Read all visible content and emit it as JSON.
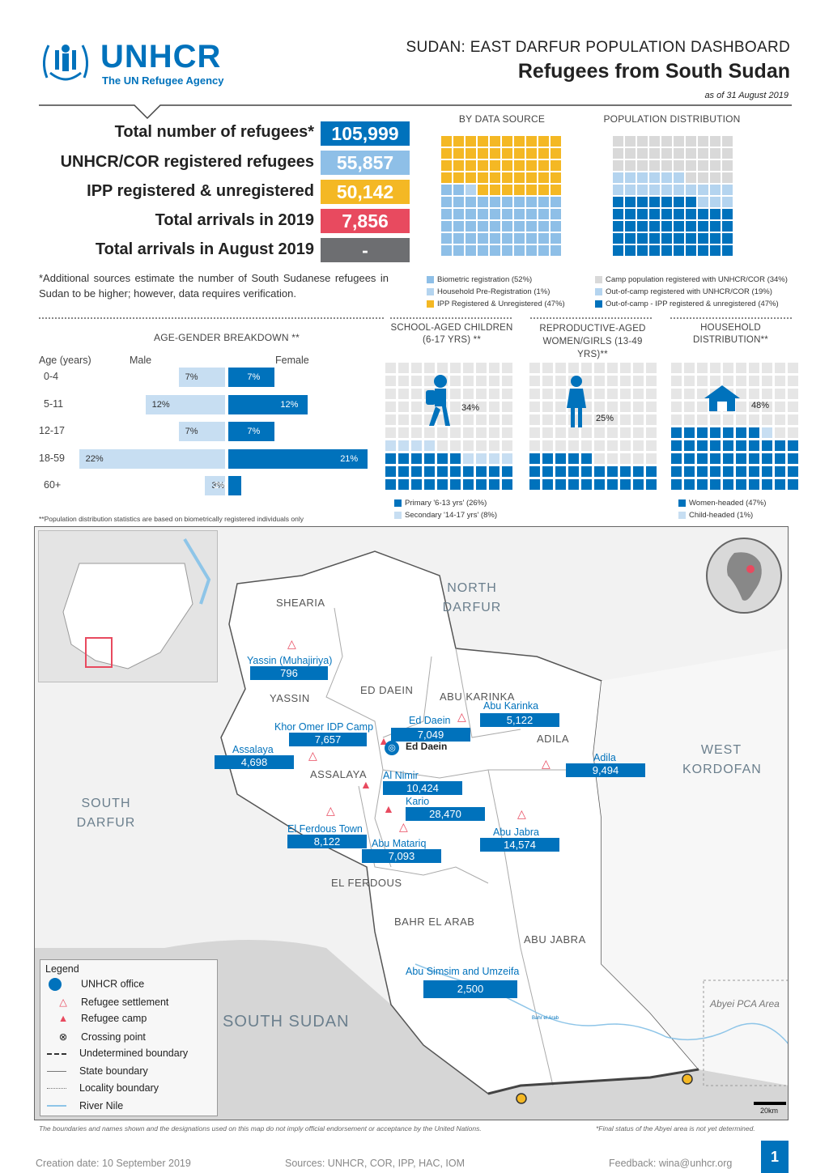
{
  "logo": {
    "name": "UNHCR",
    "tagline": "The UN Refugee Agency"
  },
  "header": {
    "title": "SUDAN: EAST DARFUR POPULATION DASHBOARD",
    "subtitle": "Refugees from South Sudan",
    "date": "as of 31 August 2019"
  },
  "stats": [
    {
      "label": "Total number of refugees*",
      "value": "105,999",
      "color": "#0072bc"
    },
    {
      "label": "UNHCR/COR registered refugees",
      "value": "55,857",
      "color": "#8ebfe7"
    },
    {
      "label": "IPP registered & unregistered",
      "value": "50,142",
      "color": "#f4b824"
    },
    {
      "label": "Total arrivals in 2019",
      "value": "7,856",
      "color": "#e84a5f"
    },
    {
      "label": "Total arrivals in August 2019",
      "value": "-",
      "color": "#6d6e71"
    }
  ],
  "footnote": "*Additional sources estimate the number of South Sudanese refugees in Sudan to be higher; however, data requires verification.",
  "by_data_source": {
    "title": "BY DATA SOURCE",
    "legend": [
      {
        "label": "Biometric registration (52%)",
        "color": "#8ebfe7",
        "pct": 52
      },
      {
        "label": "Household Pre-Registration (1%)",
        "color": "#b4d4ef",
        "pct": 1
      },
      {
        "label": "IPP Registered & Unregistered (47%)",
        "color": "#f4b824",
        "pct": 47
      }
    ]
  },
  "population_distribution": {
    "title": "POPULATION DISTRIBUTION",
    "legend": [
      {
        "label": "Camp population registered with UNHCR/COR (34%)",
        "color": "#d9d9d9",
        "pct": 34
      },
      {
        "label": "Out-of-camp registered with UNHCR/COR (19%)",
        "color": "#b4d4ef",
        "pct": 19
      },
      {
        "label": "Out-of-camp - IPP registered & unregistered (47%)",
        "color": "#0072bc",
        "pct": 47
      }
    ]
  },
  "age_gender": {
    "title": "AGE-GENDER BREAKDOWN **",
    "age_header": "Age (years)",
    "male_header": "Male",
    "female_header": "Female",
    "rows": [
      {
        "age": "0-4",
        "male": 7,
        "female": 7,
        "male_label": "7%",
        "female_label": "7%"
      },
      {
        "age": "5-11",
        "male": 12,
        "female": 12,
        "male_label": "12%",
        "female_label": "12%"
      },
      {
        "age": "12-17",
        "male": 7,
        "female": 7,
        "male_label": "7%",
        "female_label": "7%"
      },
      {
        "age": "18-59",
        "male": 22,
        "female": 21,
        "male_label": "22%",
        "female_label": "21%"
      },
      {
        "age": "60+",
        "male": 3,
        "female": 2,
        "male_label": "3%",
        "female_label": "2%"
      }
    ],
    "note": "**Population distribution statistics are based on biometrically registered individuals only"
  },
  "school": {
    "title": "SCHOOL-AGED CHILDREN (6-17 YRS) **",
    "pct": "34%",
    "legend": [
      {
        "label": "Primary '6-13 yrs' (26%)",
        "color": "#0072bc"
      },
      {
        "label": "Secondary '14-17 yrs' (8%)",
        "color": "#c7def2"
      }
    ]
  },
  "repro": {
    "title": "REPRODUCTIVE-AGED WOMEN/GIRLS (13-49 YRS)**",
    "pct": "25%"
  },
  "household": {
    "title": "HOUSEHOLD DISTRIBUTION**",
    "pct": "48%",
    "legend": [
      {
        "label": "Women-headed (47%)",
        "color": "#0072bc"
      },
      {
        "label": "Child-headed (1%)",
        "color": "#c7def2"
      }
    ]
  },
  "map": {
    "regions": {
      "north_darfur": "NORTH DARFUR",
      "west_kordofan": "WEST KORDOFAN",
      "south_darfur": "SOUTH DARFUR",
      "south_sudan": "SOUTH SUDAN",
      "abyei": "Abyei PCA Area"
    },
    "localities": [
      "SHEARIA",
      "YASSIN",
      "ED DAEIN",
      "ABU KARINKA",
      "ADILA",
      "ASSALAYA",
      "EL FERDOUS",
      "BAHR EL ARAB",
      "ABU JABRA"
    ],
    "office": "Ed Daein",
    "river": "Bahr el Arab",
    "sites": [
      {
        "name": "Yassin (Muhajiriya)",
        "value": "796"
      },
      {
        "name": "Khor Omer IDP Camp",
        "value": "7,657"
      },
      {
        "name": "Ed Daein",
        "value": "7,049"
      },
      {
        "name": "Abu Karinka",
        "value": "5,122"
      },
      {
        "name": "Assalaya",
        "value": "4,698"
      },
      {
        "name": "Adila",
        "value": "9,494"
      },
      {
        "name": "Al Nimir",
        "value": "10,424"
      },
      {
        "name": "Kario",
        "value": "28,470"
      },
      {
        "name": "El Ferdous Town",
        "value": "8,122"
      },
      {
        "name": "Abu Matariq",
        "value": "7,093"
      },
      {
        "name": "Abu Jabra",
        "value": "14,574"
      },
      {
        "name": "Abu Simsim and Umzeifa",
        "value": "2,500"
      }
    ],
    "legend": {
      "title": "Legend",
      "items": [
        "UNHCR office",
        "Refugee settlement",
        "Refugee camp",
        "Crossing point",
        "Undetermined boundary",
        "State boundary",
        "Locality boundary",
        "River Nile"
      ]
    },
    "scale": "20km",
    "disclaimer": "The boundaries and names shown and the designations used on this map do not imply official endorsement or acceptance by the United Nations.",
    "abyei_note": "*Final status of the Abyei area is not yet determined."
  },
  "footer": {
    "created": "Creation date: 10 September 2019",
    "sources": "Sources: UNHCR, COR, IPP, HAC, IOM",
    "feedback": "Feedback: wina@unhcr.org",
    "page": "1"
  }
}
